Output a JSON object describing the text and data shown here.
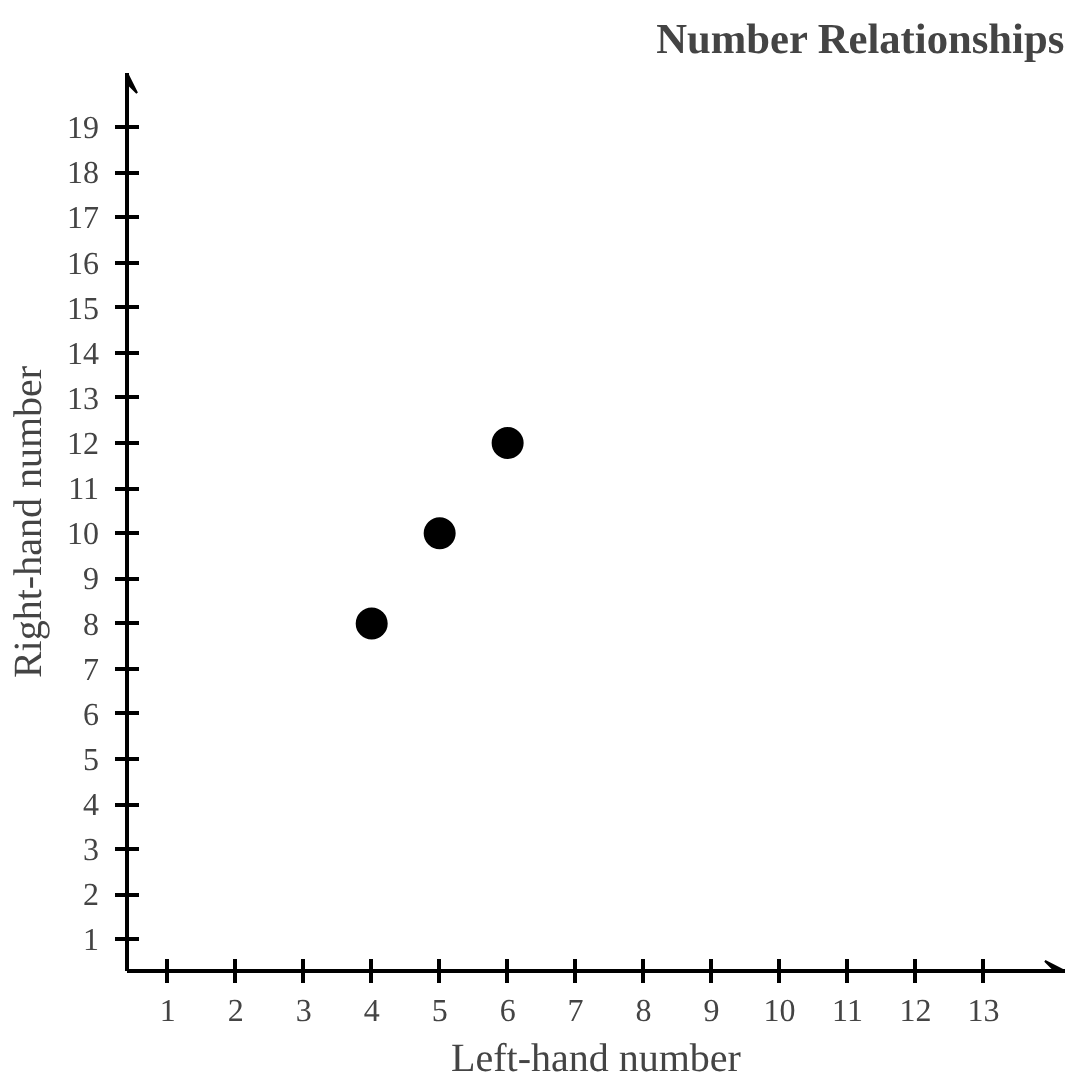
{
  "chart_data": {
    "type": "scatter",
    "title": "Number Relationships",
    "xlabel": "Left-hand number",
    "ylabel": "Right-hand number",
    "x": [
      4,
      5,
      6
    ],
    "values": [
      8,
      10,
      12
    ],
    "color": "#000000",
    "marker": "circle",
    "xlim": [
      0.4,
      14.2
    ],
    "ylim": [
      0.3,
      20.2
    ],
    "xticks": [
      1,
      2,
      3,
      4,
      5,
      6,
      7,
      8,
      9,
      10,
      11,
      12,
      13
    ],
    "yticks": [
      1,
      2,
      3,
      4,
      5,
      6,
      7,
      8,
      9,
      10,
      11,
      12,
      13,
      14,
      15,
      16,
      17,
      18,
      19
    ],
    "grid": false
  }
}
